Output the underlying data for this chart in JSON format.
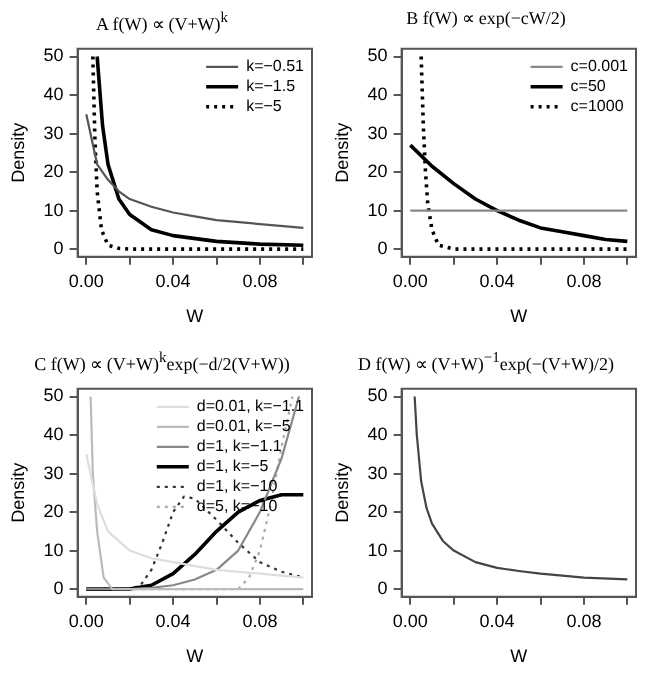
{
  "chart_data": [
    {
      "type": "line",
      "title": "A  f(W) ∝ (V+W)$^{k}$",
      "xlabel": "W",
      "ylabel": "Density",
      "xlim": [
        -0.004,
        0.104
      ],
      "ylim": [
        -2,
        52
      ],
      "xticks": [
        {
          "value": 0,
          "label": "0.00"
        },
        {
          "value": 0.02,
          "label": null
        },
        {
          "value": 0.04,
          "label": "0.04"
        },
        {
          "value": 0.06,
          "label": null
        },
        {
          "value": 0.08,
          "label": "0.08"
        },
        {
          "value": 0.1,
          "label": null
        }
      ],
      "yticks": [
        0,
        10,
        20,
        30,
        40,
        50
      ],
      "grid": false,
      "legend": "top right",
      "marker": "none",
      "series": [
        {
          "name": "k=−0.51",
          "color": "#555555",
          "line_style": "solid",
          "x": [
            0,
            0.005,
            0.01,
            0.015,
            0.02,
            0.03,
            0.04,
            0.05,
            0.06,
            0.08,
            0.1
          ],
          "values": [
            35,
            22,
            18,
            15,
            13,
            11,
            9.5,
            8.5,
            7.5,
            6.5,
            5.5
          ]
        },
        {
          "name": "k=−1.5",
          "color": "#000000",
          "line_style": "solid",
          "x": [
            0.005,
            0.0075,
            0.01,
            0.015,
            0.02,
            0.03,
            0.04,
            0.06,
            0.08,
            0.1
          ],
          "values": [
            50,
            32,
            22,
            13,
            9,
            5,
            3.5,
            2,
            1.3,
            1
          ]
        },
        {
          "name": "k=−5",
          "color": "#000000",
          "line_style": "dotted",
          "x": [
            0.003,
            0.004,
            0.005,
            0.007,
            0.01,
            0.015,
            0.02,
            0.04,
            0.06,
            0.08,
            0.1
          ],
          "values": [
            50,
            28,
            15,
            5,
            1,
            0.2,
            0,
            0,
            0,
            0,
            0
          ]
        }
      ]
    },
    {
      "type": "line",
      "title": "B  f(W) ∝ exp(−cW/2)",
      "xlabel": "W",
      "ylabel": "Density",
      "xlim": [
        -0.004,
        0.104
      ],
      "ylim": [
        -2,
        52
      ],
      "xticks": [
        {
          "value": 0,
          "label": "0.00"
        },
        {
          "value": 0.02,
          "label": null
        },
        {
          "value": 0.04,
          "label": "0.04"
        },
        {
          "value": 0.06,
          "label": null
        },
        {
          "value": 0.08,
          "label": "0.08"
        },
        {
          "value": 0.1,
          "label": null
        }
      ],
      "yticks": [
        0,
        10,
        20,
        30,
        40,
        50
      ],
      "grid": false,
      "legend": "top right",
      "marker": "none",
      "series": [
        {
          "name": "c=0.001",
          "color": "#888888",
          "line_style": "solid",
          "x": [
            0,
            0.1
          ],
          "values": [
            10,
            10
          ]
        },
        {
          "name": "c=50",
          "color": "#000000",
          "line_style": "solid",
          "x": [
            0,
            0.01,
            0.02,
            0.03,
            0.04,
            0.05,
            0.06,
            0.07,
            0.08,
            0.09,
            0.1
          ],
          "values": [
            27,
            21.5,
            17,
            13,
            10,
            7.5,
            5.5,
            4.5,
            3.5,
            2.5,
            2
          ]
        },
        {
          "name": "c=1000",
          "color": "#000000",
          "line_style": "dotted",
          "x": [
            0.005,
            0.006,
            0.007,
            0.008,
            0.01,
            0.013,
            0.02,
            0.04,
            0.06,
            0.08,
            0.1
          ],
          "values": [
            50,
            32,
            20,
            12,
            5,
            1,
            0,
            0,
            0,
            0,
            0
          ]
        }
      ]
    },
    {
      "type": "line",
      "title": "C  f(W) ∝ (V+W)$^{k}$exp(−d/2(V+W))",
      "xlabel": "W",
      "ylabel": "Density",
      "xlim": [
        -0.004,
        0.104
      ],
      "ylim": [
        -2,
        52
      ],
      "xticks": [
        {
          "value": 0,
          "label": "0.00"
        },
        {
          "value": 0.02,
          "label": null
        },
        {
          "value": 0.04,
          "label": "0.04"
        },
        {
          "value": 0.06,
          "label": null
        },
        {
          "value": 0.08,
          "label": "0.08"
        },
        {
          "value": 0.1,
          "label": null
        }
      ],
      "yticks": [
        0,
        10,
        20,
        30,
        40,
        50
      ],
      "grid": false,
      "legend": "top right",
      "marker": "none",
      "series": [
        {
          "name": "d=0.01, k=−1.1",
          "color": "#dddddd",
          "line_style": "solid",
          "x": [
            0,
            0.005,
            0.01,
            0.02,
            0.03,
            0.04,
            0.06,
            0.08,
            0.1
          ],
          "values": [
            35,
            22,
            15,
            10,
            8,
            7,
            5,
            4,
            3
          ]
        },
        {
          "name": "d=0.01, k=−5",
          "color": "#bbbbbb",
          "line_style": "solid",
          "x": [
            0.002,
            0.003,
            0.005,
            0.008,
            0.012,
            0.02,
            0.04,
            0.06,
            0.08,
            0.1
          ],
          "values": [
            50,
            30,
            15,
            3,
            0,
            0,
            0,
            0,
            0,
            0
          ]
        },
        {
          "name": "d=1, k=−1.1",
          "color": "#888888",
          "line_style": "solid",
          "x": [
            0,
            0.02,
            0.03,
            0.04,
            0.05,
            0.06,
            0.07,
            0.08,
            0.09,
            0.098
          ],
          "values": [
            0,
            0,
            0.3,
            1,
            2.5,
            5,
            10,
            20,
            34,
            50
          ]
        },
        {
          "name": "d=1, k=−5",
          "color": "#000000",
          "line_style": "solid",
          "x": [
            0,
            0.02,
            0.03,
            0.04,
            0.05,
            0.06,
            0.07,
            0.08,
            0.09,
            0.1
          ],
          "values": [
            0,
            0,
            1,
            4,
            9,
            15,
            20,
            23,
            24.5,
            24.5
          ]
        },
        {
          "name": "d=1, k=−10",
          "color": "#333333",
          "line_style": "dotted",
          "x": [
            0,
            0.02,
            0.025,
            0.03,
            0.035,
            0.04,
            0.045,
            0.05,
            0.06,
            0.07,
            0.08,
            0.09,
            0.1
          ],
          "values": [
            0,
            0,
            1,
            5,
            12,
            20,
            24,
            23.5,
            18,
            12,
            7,
            4.5,
            3
          ]
        },
        {
          "name": "d=5, k=−10",
          "color": "#aaaaaa",
          "line_style": "dotted",
          "x": [
            0,
            0.07,
            0.075,
            0.08,
            0.085,
            0.09,
            0.095
          ],
          "values": [
            0,
            0,
            3,
            10,
            22,
            37,
            50
          ]
        }
      ]
    },
    {
      "type": "line",
      "title": "D  f(W) ∝ (V+W)$^{−1}$exp(−(V+W)/2)",
      "xlabel": "W",
      "ylabel": "Density",
      "xlim": [
        -0.004,
        0.104
      ],
      "ylim": [
        -2,
        52
      ],
      "xticks": [
        {
          "value": 0,
          "label": "0.00"
        },
        {
          "value": 0.02,
          "label": null
        },
        {
          "value": 0.04,
          "label": "0.04"
        },
        {
          "value": 0.06,
          "label": null
        },
        {
          "value": 0.08,
          "label": "0.08"
        },
        {
          "value": 0.1,
          "label": null
        }
      ],
      "yticks": [
        0,
        10,
        20,
        30,
        40,
        50
      ],
      "grid": false,
      "legend": false,
      "marker": "none",
      "series": [
        {
          "color": "#444444",
          "line_style": "solid",
          "x": [
            0.002,
            0.003,
            0.005,
            0.0075,
            0.01,
            0.015,
            0.02,
            0.03,
            0.04,
            0.05,
            0.06,
            0.08,
            0.1
          ],
          "values": [
            50,
            40,
            28,
            21,
            17,
            12.5,
            10,
            7,
            5.5,
            4.7,
            4,
            3,
            2.5
          ]
        }
      ]
    }
  ]
}
